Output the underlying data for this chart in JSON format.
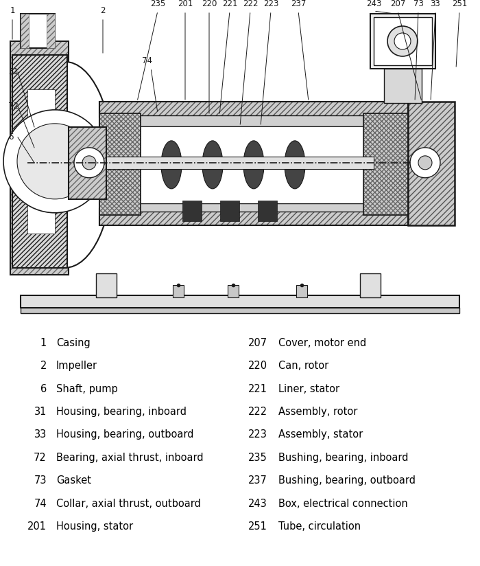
{
  "bg_color": "#ffffff",
  "left_labels": [
    {
      "num": "1",
      "text": "Casing"
    },
    {
      "num": "2",
      "text": "Impeller"
    },
    {
      "num": "6",
      "text": "Shaft, pump"
    },
    {
      "num": "31",
      "text": "Housing, bearing, inboard"
    },
    {
      "num": "33",
      "text": "Housing, bearing, outboard"
    },
    {
      "num": "72",
      "text": "Bearing, axial thrust, inboard"
    },
    {
      "num": "73",
      "text": "Gasket"
    },
    {
      "num": "74",
      "text": "Collar, axial thrust, outboard"
    },
    {
      "num": "201",
      "text": "Housing, stator"
    }
  ],
  "right_labels": [
    {
      "num": "207",
      "text": "Cover, motor end"
    },
    {
      "num": "220",
      "text": "Can, rotor"
    },
    {
      "num": "221",
      "text": "Liner, stator"
    },
    {
      "num": "222",
      "text": "Assembly, rotor"
    },
    {
      "num": "223",
      "text": "Assembly, stator"
    },
    {
      "num": "235",
      "text": "Bushing, bearing, inboard"
    },
    {
      "num": "237",
      "text": "Bushing, bearing, outboard"
    },
    {
      "num": "243",
      "text": "Box, electrical connection"
    },
    {
      "num": "251",
      "text": "Tube, circulation"
    }
  ],
  "num_color": "#000000",
  "text_color": "#000000",
  "font_size_label": 10.5,
  "diagram_top_numbers": [
    "1",
    "2",
    "235",
    "201",
    "220",
    "221",
    "222",
    "223",
    "237",
    "243",
    "207",
    "73",
    "33",
    "251"
  ],
  "diagram_left_numbers": [
    "31",
    "72",
    "6"
  ],
  "diagram_inner_numbers": [
    "73",
    "74"
  ],
  "lc": "#1a1a1a",
  "hatch_color": "#555555"
}
